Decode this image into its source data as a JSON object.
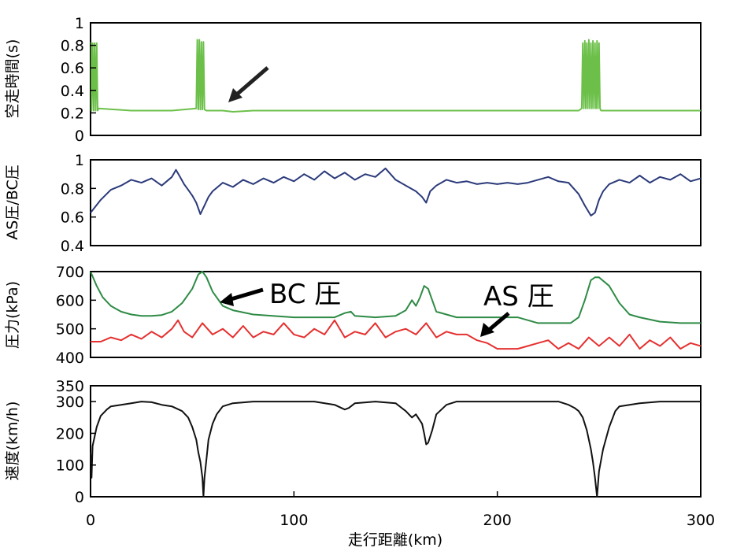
{
  "x_axis": {
    "label": "走行距離(km)",
    "range": [
      0,
      300
    ],
    "ticks": [
      "0",
      "100",
      "200",
      "300"
    ]
  },
  "chart_data": [
    {
      "type": "line",
      "ylabel": "空走時間(s)",
      "ylim": [
        0,
        1
      ],
      "yticks": [
        "0",
        "0.2",
        "0.4",
        "0.6",
        "0.8",
        "1"
      ],
      "series": [
        {
          "color": "#6cc04a",
          "x": [
            0,
            0.5,
            0.5,
            1,
            1.5,
            2,
            2.5,
            3,
            3.5,
            4,
            20,
            40,
            52,
            52.5,
            53,
            53.5,
            54,
            54.5,
            55,
            55.5,
            56,
            57,
            60,
            65,
            70,
            80,
            100,
            120,
            140,
            160,
            180,
            200,
            220,
            240,
            241.5,
            242,
            242.5,
            243,
            243.5,
            244,
            244.5,
            245,
            245.5,
            246,
            246.5,
            247,
            247.5,
            248,
            248.5,
            249,
            249.5,
            250,
            250.5,
            251,
            260,
            280,
            300
          ],
          "y": [
            0.82,
            0.82,
            0.22,
            0.82,
            0.22,
            0.82,
            0.22,
            0.82,
            0.22,
            0.24,
            0.22,
            0.22,
            0.24,
            0.85,
            0.23,
            0.85,
            0.23,
            0.83,
            0.23,
            0.83,
            0.23,
            0.22,
            0.22,
            0.22,
            0.21,
            0.22,
            0.22,
            0.22,
            0.22,
            0.22,
            0.22,
            0.22,
            0.22,
            0.22,
            0.24,
            0.82,
            0.24,
            0.84,
            0.24,
            0.82,
            0.24,
            0.85,
            0.24,
            0.82,
            0.24,
            0.84,
            0.24,
            0.82,
            0.24,
            0.84,
            0.24,
            0.82,
            0.24,
            0.22,
            0.22,
            0.22,
            0.22
          ]
        }
      ]
    },
    {
      "type": "line",
      "ylabel": "AS圧/BC圧",
      "ylim": [
        0.4,
        1
      ],
      "yticks": [
        "0.4",
        "0.6",
        "0.8",
        "1"
      ],
      "series": [
        {
          "color": "#2b3a7a",
          "x": [
            0,
            5,
            10,
            15,
            20,
            25,
            30,
            35,
            40,
            42,
            44,
            46,
            48,
            50,
            52,
            54,
            56,
            58,
            60,
            65,
            70,
            75,
            80,
            85,
            90,
            95,
            100,
            105,
            110,
            115,
            120,
            125,
            130,
            135,
            140,
            145,
            150,
            155,
            160,
            163,
            165,
            167,
            170,
            175,
            180,
            185,
            190,
            195,
            200,
            205,
            210,
            215,
            220,
            225,
            230,
            235,
            240,
            243,
            246,
            248,
            250,
            252,
            255,
            260,
            265,
            270,
            275,
            280,
            285,
            290,
            295,
            300
          ],
          "y": [
            0.63,
            0.72,
            0.79,
            0.82,
            0.86,
            0.84,
            0.87,
            0.82,
            0.88,
            0.93,
            0.88,
            0.83,
            0.79,
            0.75,
            0.7,
            0.62,
            0.68,
            0.74,
            0.78,
            0.84,
            0.81,
            0.86,
            0.83,
            0.87,
            0.84,
            0.88,
            0.85,
            0.9,
            0.86,
            0.92,
            0.87,
            0.91,
            0.86,
            0.9,
            0.88,
            0.94,
            0.86,
            0.82,
            0.78,
            0.74,
            0.7,
            0.78,
            0.82,
            0.86,
            0.84,
            0.85,
            0.83,
            0.84,
            0.83,
            0.84,
            0.83,
            0.84,
            0.86,
            0.88,
            0.85,
            0.84,
            0.76,
            0.68,
            0.61,
            0.63,
            0.72,
            0.78,
            0.83,
            0.86,
            0.84,
            0.89,
            0.84,
            0.88,
            0.86,
            0.9,
            0.85,
            0.87
          ]
        }
      ]
    },
    {
      "type": "line",
      "ylabel": "圧力(kPa)",
      "ylim": [
        400,
        700
      ],
      "yticks": [
        "400",
        "500",
        "600",
        "700"
      ],
      "annotations": [
        "BC 圧",
        "AS 圧"
      ],
      "series": [
        {
          "color": "#2e8b45",
          "x": [
            0,
            3,
            6,
            10,
            15,
            20,
            25,
            30,
            35,
            40,
            45,
            50,
            53,
            55,
            57,
            60,
            65,
            70,
            80,
            100,
            110,
            120,
            125,
            128,
            130,
            140,
            150,
            155,
            158,
            160,
            162,
            164,
            166,
            168,
            170,
            180,
            190,
            200,
            205,
            210,
            220,
            230,
            236,
            240,
            243,
            246,
            248,
            250,
            255,
            260,
            265,
            270,
            280,
            290,
            300
          ],
          "y": [
            700,
            650,
            610,
            580,
            560,
            550,
            545,
            545,
            548,
            560,
            590,
            640,
            690,
            700,
            680,
            630,
            580,
            565,
            550,
            540,
            540,
            540,
            555,
            560,
            545,
            540,
            545,
            565,
            600,
            580,
            610,
            650,
            640,
            600,
            560,
            540,
            540,
            540,
            540,
            540,
            520,
            520,
            520,
            540,
            600,
            670,
            680,
            680,
            650,
            590,
            550,
            540,
            525,
            520,
            520
          ]
        },
        {
          "color": "#e53030",
          "x": [
            0,
            5,
            10,
            15,
            20,
            25,
            30,
            35,
            40,
            43,
            46,
            50,
            55,
            60,
            65,
            70,
            75,
            80,
            85,
            90,
            95,
            100,
            105,
            110,
            115,
            120,
            125,
            130,
            135,
            140,
            145,
            150,
            155,
            160,
            165,
            170,
            175,
            180,
            185,
            190,
            195,
            200,
            205,
            210,
            215,
            220,
            225,
            230,
            235,
            240,
            245,
            250,
            255,
            260,
            265,
            270,
            275,
            280,
            285,
            290,
            295,
            300
          ],
          "y": [
            455,
            455,
            470,
            460,
            480,
            465,
            490,
            470,
            500,
            530,
            490,
            470,
            520,
            480,
            500,
            470,
            510,
            470,
            490,
            480,
            520,
            480,
            470,
            500,
            480,
            530,
            470,
            490,
            480,
            520,
            470,
            490,
            500,
            480,
            520,
            470,
            490,
            480,
            480,
            460,
            450,
            430,
            430,
            430,
            440,
            450,
            460,
            430,
            450,
            430,
            470,
            440,
            470,
            440,
            480,
            430,
            460,
            440,
            470,
            430,
            450,
            440
          ]
        }
      ]
    },
    {
      "type": "line",
      "ylabel": "速度(km/h)",
      "ylim": [
        0,
        350
      ],
      "yticks": [
        "0",
        "100",
        "200",
        "300",
        "350"
      ],
      "series": [
        {
          "color": "#111111",
          "x": [
            0,
            0.5,
            1,
            2,
            3,
            5,
            8,
            10,
            15,
            20,
            25,
            30,
            35,
            40,
            45,
            48,
            50,
            52,
            53,
            54,
            55,
            55.5,
            56,
            57,
            58,
            60,
            62,
            65,
            70,
            80,
            90,
            100,
            110,
            120,
            125,
            127,
            130,
            140,
            150,
            155,
            158,
            160,
            162,
            163,
            164,
            165,
            166,
            168,
            170,
            175,
            180,
            200,
            230,
            235,
            238,
            240,
            242,
            244,
            246,
            247,
            248,
            249,
            250,
            252,
            255,
            258,
            260,
            265,
            270,
            280,
            290,
            300
          ],
          "y": [
            140,
            60,
            160,
            190,
            220,
            255,
            275,
            285,
            290,
            295,
            300,
            298,
            290,
            285,
            270,
            250,
            220,
            180,
            140,
            110,
            60,
            0,
            60,
            120,
            180,
            230,
            260,
            285,
            295,
            300,
            300,
            300,
            300,
            290,
            275,
            280,
            295,
            300,
            295,
            270,
            250,
            260,
            240,
            230,
            200,
            165,
            170,
            210,
            260,
            290,
            300,
            300,
            300,
            290,
            280,
            270,
            250,
            210,
            150,
            110,
            60,
            0,
            80,
            150,
            220,
            270,
            285,
            290,
            295,
            300,
            300,
            300
          ]
        }
      ]
    }
  ]
}
